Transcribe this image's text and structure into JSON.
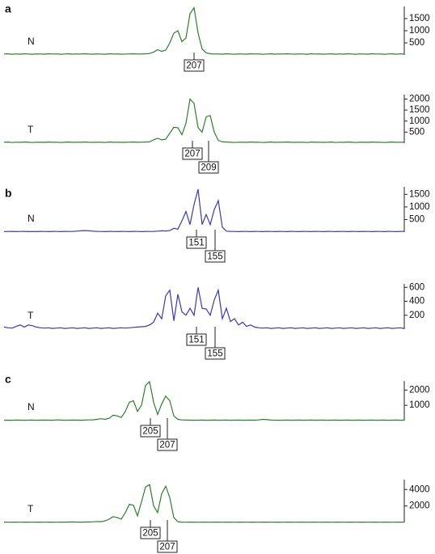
{
  "chart_data": [
    {
      "type": "line",
      "panel": "a",
      "label": "N",
      "color": "#2e7d2e",
      "ylim": [
        0,
        2000
      ],
      "yticks": [
        500,
        1000,
        1500
      ],
      "allele_labels": [
        "207"
      ],
      "values": [
        40,
        50,
        30,
        45,
        35,
        50,
        40,
        30,
        45,
        40,
        35,
        50,
        40,
        45,
        30,
        40,
        50,
        35,
        45,
        40,
        50,
        40,
        35,
        45,
        40,
        30,
        50,
        40,
        45,
        35,
        40,
        45,
        50,
        40,
        45,
        50,
        60,
        120,
        220,
        150,
        200,
        500,
        900,
        1000,
        550,
        700,
        1700,
        1950,
        900,
        250,
        90,
        50,
        40,
        45,
        35,
        50,
        40,
        30,
        45,
        40,
        35,
        50,
        40,
        45,
        30,
        40,
        50,
        35,
        45,
        40,
        50,
        40,
        35,
        45,
        40,
        30,
        50,
        40,
        45,
        35,
        40,
        50,
        30,
        45,
        35,
        50,
        40,
        30,
        45,
        40,
        35,
        50,
        40,
        45,
        30,
        40,
        50,
        35,
        45,
        40
      ]
    },
    {
      "type": "line",
      "label": "T",
      "color": "#2e7d2e",
      "ylim": [
        0,
        2200
      ],
      "yticks": [
        500,
        1000,
        1500,
        2000
      ],
      "allele_labels": [
        "207",
        "209"
      ],
      "values": [
        40,
        50,
        30,
        45,
        35,
        50,
        40,
        30,
        45,
        40,
        35,
        50,
        40,
        45,
        30,
        40,
        50,
        35,
        45,
        40,
        50,
        40,
        35,
        45,
        40,
        30,
        50,
        40,
        45,
        35,
        40,
        45,
        50,
        40,
        45,
        50,
        60,
        150,
        220,
        150,
        180,
        450,
        720,
        700,
        380,
        900,
        2000,
        1800,
        700,
        500,
        1200,
        1250,
        500,
        130,
        60,
        50,
        40,
        30,
        45,
        40,
        35,
        50,
        40,
        45,
        30,
        40,
        50,
        35,
        45,
        40,
        50,
        40,
        35,
        45,
        40,
        30,
        50,
        40,
        45,
        35,
        40,
        50,
        30,
        45,
        35,
        50,
        40,
        30,
        45,
        40,
        35,
        50,
        40,
        45,
        30,
        40,
        50,
        35,
        45,
        40
      ]
    },
    {
      "type": "line",
      "panel": "b",
      "label": "N",
      "color": "#3b3ba6",
      "ylim": [
        0,
        1800
      ],
      "yticks": [
        500,
        1000,
        1500
      ],
      "allele_labels": [
        "151",
        "155"
      ],
      "values": [
        20,
        25,
        30,
        20,
        25,
        30,
        20,
        25,
        20,
        30,
        25,
        20,
        30,
        25,
        20,
        30,
        25,
        30,
        40,
        50,
        60,
        50,
        40,
        30,
        25,
        20,
        30,
        25,
        20,
        30,
        25,
        20,
        30,
        25,
        20,
        30,
        25,
        30,
        40,
        50,
        45,
        60,
        150,
        120,
        450,
        820,
        300,
        1100,
        1700,
        300,
        700,
        300,
        900,
        1250,
        200,
        40,
        30,
        25,
        20,
        30,
        25,
        20,
        30,
        25,
        20,
        30,
        25,
        20,
        30,
        25,
        20,
        30,
        25,
        20,
        30,
        25,
        20,
        30,
        25,
        20,
        30,
        25,
        20,
        30,
        25,
        20,
        30,
        25,
        20,
        30,
        25,
        20,
        30,
        25,
        20,
        30,
        25,
        20,
        30,
        25
      ]
    },
    {
      "type": "line",
      "label": "T",
      "color": "#3b3ba6",
      "ylim": [
        0,
        650
      ],
      "yticks": [
        200,
        400,
        600
      ],
      "allele_labels": [
        "151",
        "155"
      ],
      "values": [
        30,
        20,
        15,
        40,
        60,
        30,
        60,
        50,
        30,
        20,
        15,
        20,
        10,
        15,
        20,
        10,
        15,
        20,
        10,
        15,
        20,
        10,
        15,
        20,
        10,
        15,
        20,
        10,
        15,
        20,
        15,
        20,
        25,
        30,
        35,
        40,
        60,
        100,
        230,
        150,
        480,
        560,
        120,
        500,
        250,
        200,
        300,
        200,
        600,
        300,
        290,
        200,
        420,
        560,
        150,
        300,
        110,
        150,
        60,
        100,
        40,
        60,
        30,
        20,
        15,
        20,
        10,
        15,
        20,
        10,
        15,
        20,
        10,
        15,
        20,
        10,
        15,
        20,
        10,
        15,
        20,
        10,
        15,
        20,
        10,
        15,
        20,
        10,
        15,
        20,
        10,
        15,
        20,
        10,
        15,
        20,
        10,
        15,
        20,
        10
      ]
    },
    {
      "type": "line",
      "panel": "c",
      "label": "N",
      "color": "#2e7d2e",
      "ylim": [
        0,
        2600
      ],
      "yticks": [
        1000,
        2000
      ],
      "allele_labels": [
        "205",
        "207"
      ],
      "values": [
        20,
        25,
        20,
        30,
        25,
        20,
        25,
        30,
        20,
        25,
        30,
        25,
        20,
        40,
        30,
        20,
        25,
        30,
        25,
        20,
        30,
        40,
        50,
        80,
        120,
        80,
        150,
        350,
        300,
        200,
        600,
        1200,
        1300,
        600,
        1000,
        2300,
        2550,
        1200,
        400,
        1100,
        1600,
        1300,
        300,
        80,
        40,
        30,
        25,
        20,
        25,
        30,
        20,
        25,
        30,
        20,
        25,
        30,
        20,
        25,
        30,
        20,
        25,
        30,
        20,
        40,
        80,
        60,
        30,
        25,
        20,
        25,
        30,
        20,
        25,
        30,
        20,
        25,
        30,
        20,
        25,
        30,
        20,
        25,
        30,
        20,
        25,
        30,
        20,
        25,
        30,
        20,
        25,
        30,
        20,
        25,
        30,
        20,
        25,
        30,
        20,
        25
      ]
    },
    {
      "type": "line",
      "label": "T",
      "color": "#2e7d2e",
      "ylim": [
        0,
        5200
      ],
      "yticks": [
        2000,
        4000
      ],
      "allele_labels": [
        "205",
        "207"
      ],
      "values": [
        40,
        30,
        35,
        40,
        30,
        35,
        40,
        30,
        35,
        40,
        30,
        35,
        40,
        30,
        35,
        40,
        50,
        60,
        50,
        40,
        50,
        60,
        80,
        120,
        100,
        200,
        400,
        700,
        600,
        400,
        1200,
        2200,
        2100,
        800,
        2500,
        4300,
        4600,
        2000,
        1200,
        3500,
        4400,
        3000,
        600,
        100,
        40,
        30,
        35,
        40,
        30,
        35,
        40,
        30,
        35,
        40,
        30,
        35,
        40,
        30,
        35,
        40,
        30,
        35,
        40,
        30,
        35,
        40,
        30,
        35,
        40,
        30,
        35,
        40,
        30,
        35,
        40,
        30,
        35,
        40,
        30,
        35,
        40,
        30,
        35,
        40,
        30,
        35,
        40,
        30,
        35,
        40,
        30,
        35,
        40,
        30,
        35,
        40,
        30,
        35,
        40,
        30
      ]
    }
  ]
}
